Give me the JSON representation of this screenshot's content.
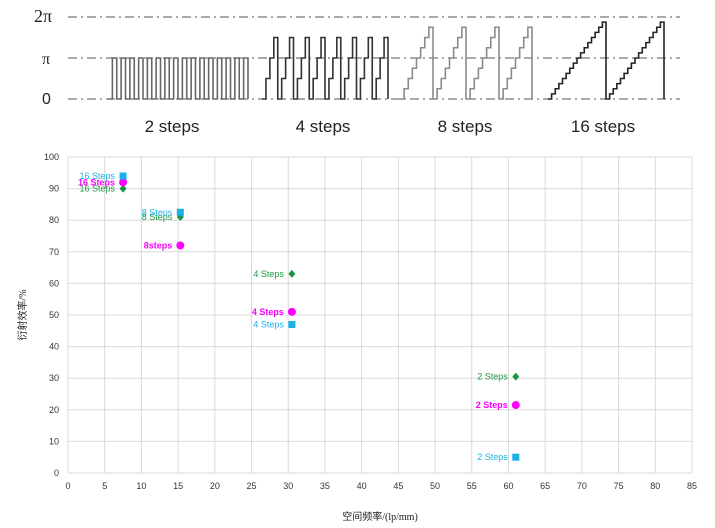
{
  "phase_panel": {
    "y_labels": [
      "2π",
      "π",
      "0"
    ],
    "panels": [
      {
        "label": "2 steps",
        "steps": 2,
        "periods": 16
      },
      {
        "label": "4 steps",
        "steps": 4,
        "periods": 8
      },
      {
        "label": "8 steps",
        "steps": 8,
        "periods": 4
      },
      {
        "label": "16 steps",
        "steps": 16,
        "periods": 2
      }
    ]
  },
  "chart_data": {
    "type": "scatter",
    "title": "",
    "xlabel": "空间频率/(lp/mm)",
    "ylabel": "衍射效率/%",
    "xlim": [
      0,
      85
    ],
    "ylim": [
      0,
      100
    ],
    "xticks": [
      0,
      5,
      10,
      15,
      20,
      25,
      30,
      35,
      40,
      45,
      50,
      55,
      60,
      65,
      70,
      75,
      80,
      85
    ],
    "yticks": [
      0,
      10,
      20,
      30,
      40,
      50,
      60,
      70,
      80,
      90,
      100
    ],
    "grid": true,
    "series": [
      {
        "color": "#1a9641",
        "marker": "diamond",
        "points": [
          {
            "x": 7.5,
            "y": 90,
            "label": "16 Steps"
          },
          {
            "x": 15.3,
            "y": 81,
            "label": "8 Steps"
          },
          {
            "x": 30.5,
            "y": 63,
            "label": "4 Steps"
          },
          {
            "x": 61,
            "y": 30.5,
            "label": "2 Steps"
          }
        ]
      },
      {
        "color": "#ff00ff",
        "marker": "circle",
        "points": [
          {
            "x": 7.5,
            "y": 92,
            "label": "16 Steps"
          },
          {
            "x": 15.3,
            "y": 72,
            "label": "8steps"
          },
          {
            "x": 30.5,
            "y": 51,
            "label": "4 Steps"
          },
          {
            "x": 61,
            "y": 21.5,
            "label": "2 Steps"
          }
        ]
      },
      {
        "color": "#1ab0e8",
        "marker": "square",
        "points": [
          {
            "x": 7.5,
            "y": 94,
            "label": "16 Steps"
          },
          {
            "x": 15.3,
            "y": 82.5,
            "label": "8 Steps"
          },
          {
            "x": 30.5,
            "y": 47,
            "label": "4 Steps"
          },
          {
            "x": 61,
            "y": 5,
            "label": "2 Steps"
          }
        ]
      }
    ]
  }
}
